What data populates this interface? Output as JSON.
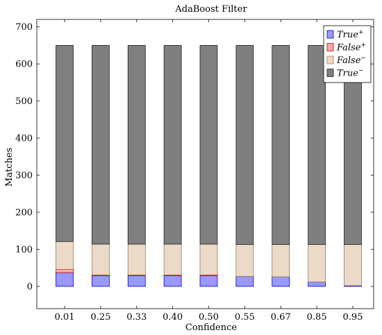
{
  "chart_data": {
    "type": "bar",
    "stacked": true,
    "title": "AdaBoost Filter",
    "xlabel": "Confidence",
    "ylabel": "Matches",
    "categories": [
      "0.01",
      "0.25",
      "0.33",
      "0.40",
      "0.50",
      "0.55",
      "0.67",
      "0.85",
      "0.95"
    ],
    "ylim": [
      -60,
      720
    ],
    "yticks": [
      0,
      100,
      200,
      300,
      400,
      500,
      600,
      700
    ],
    "grid": false,
    "legend_position": "top-right",
    "series": [
      {
        "name": "True",
        "sup": "+",
        "color": "#9999ff",
        "edge": "#0000cc",
        "values": [
          37,
          29,
          29,
          29,
          29,
          27,
          26,
          12,
          2
        ]
      },
      {
        "name": "False",
        "sup": "+",
        "color": "#ffaaaa",
        "edge": "#cc0000",
        "values": [
          9,
          2,
          2,
          2,
          2,
          0,
          0,
          0,
          0
        ]
      },
      {
        "name": "False",
        "sup": "−",
        "color": "#ecdac8",
        "edge": "#a07850",
        "values": [
          75,
          83,
          83,
          83,
          83,
          86,
          87,
          101,
          111
        ]
      },
      {
        "name": "True",
        "sup": "−",
        "color": "#7f7f7f",
        "edge": "#222222",
        "values": [
          529,
          536,
          536,
          536,
          536,
          537,
          537,
          537,
          537
        ]
      }
    ]
  }
}
